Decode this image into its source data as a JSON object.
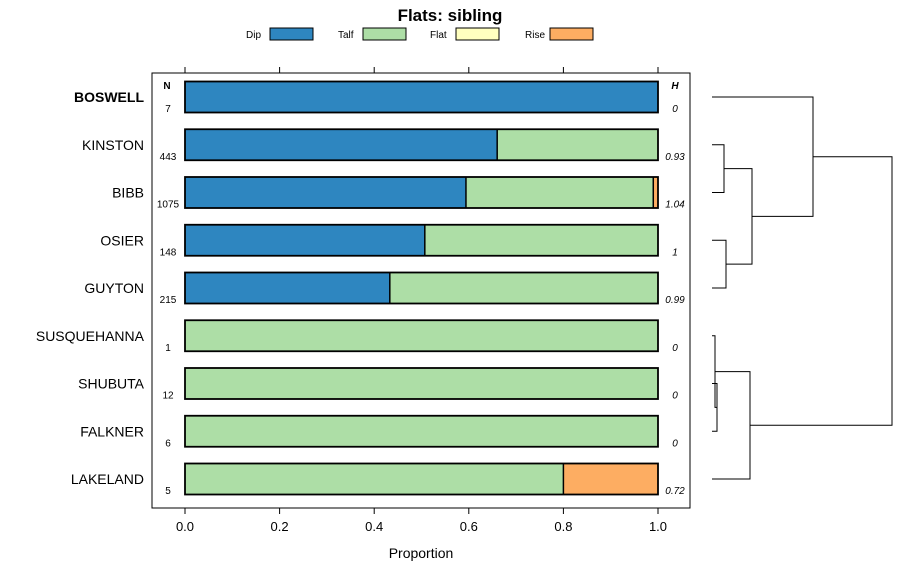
{
  "chart_data": {
    "type": "bar",
    "orientation": "horizontal",
    "stacked": true,
    "title": "Flats: sibling",
    "xlabel": "Proportion",
    "xlim": [
      0,
      1
    ],
    "xticks": [
      0.0,
      0.2,
      0.4,
      0.6,
      0.8,
      1.0
    ],
    "xtick_labels": [
      "0.0",
      "0.2",
      "0.4",
      "0.6",
      "0.8",
      "1.0"
    ],
    "legend": {
      "position": "top",
      "entries": [
        {
          "name": "Dip",
          "color": "#2e86c0"
        },
        {
          "name": "Talf",
          "color": "#addea6"
        },
        {
          "name": "Flat",
          "color": "#ffffbf"
        },
        {
          "name": "Rise",
          "color": "#fdad62"
        }
      ]
    },
    "n_header": "N",
    "h_header": "H",
    "categories": [
      "BOSWELL",
      "KINSTON",
      "BIBB",
      "OSIER",
      "GUYTON",
      "SUSQUEHANNA",
      "SHUBUTA",
      "FALKNER",
      "LAKELAND"
    ],
    "highlight": "BOSWELL",
    "n": [
      "7",
      "443",
      "1075",
      "148",
      "215",
      "1",
      "12",
      "6",
      "5"
    ],
    "h": [
      "0",
      "0.93",
      "1.04",
      "1",
      "0.99",
      "0",
      "0",
      "0",
      "0.72"
    ],
    "series": [
      {
        "name": "Dip",
        "values": [
          1.0,
          0.66,
          0.594,
          0.507,
          0.433,
          0,
          0,
          0,
          0
        ]
      },
      {
        "name": "Talf",
        "values": [
          0,
          0.34,
          0.396,
          0.493,
          0.567,
          1.0,
          1.0,
          1.0,
          0.8
        ]
      },
      {
        "name": "Flat",
        "values": [
          0,
          0,
          0,
          0,
          0,
          0,
          0,
          0,
          0
        ]
      },
      {
        "name": "Rise",
        "values": [
          0,
          0,
          0.01,
          0,
          0,
          0,
          0,
          0,
          0.2
        ]
      }
    ],
    "dendrogram": {
      "description": "hierarchical clustering of rows",
      "merges": [
        {
          "a": "KINSTON",
          "b": "BIBB"
        },
        {
          "a": "OSIER",
          "b": "GUYTON"
        },
        {
          "a": "m0",
          "b": "m1"
        },
        {
          "a": "BOSWELL",
          "b": "m2"
        },
        {
          "a": "SHUBUTA",
          "b": "FALKNER"
        },
        {
          "a": "SUSQUEHANNA",
          "b": "m4"
        },
        {
          "a": "m5",
          "b": "LAKELAND"
        },
        {
          "a": "m3",
          "b": "m6"
        }
      ]
    }
  }
}
